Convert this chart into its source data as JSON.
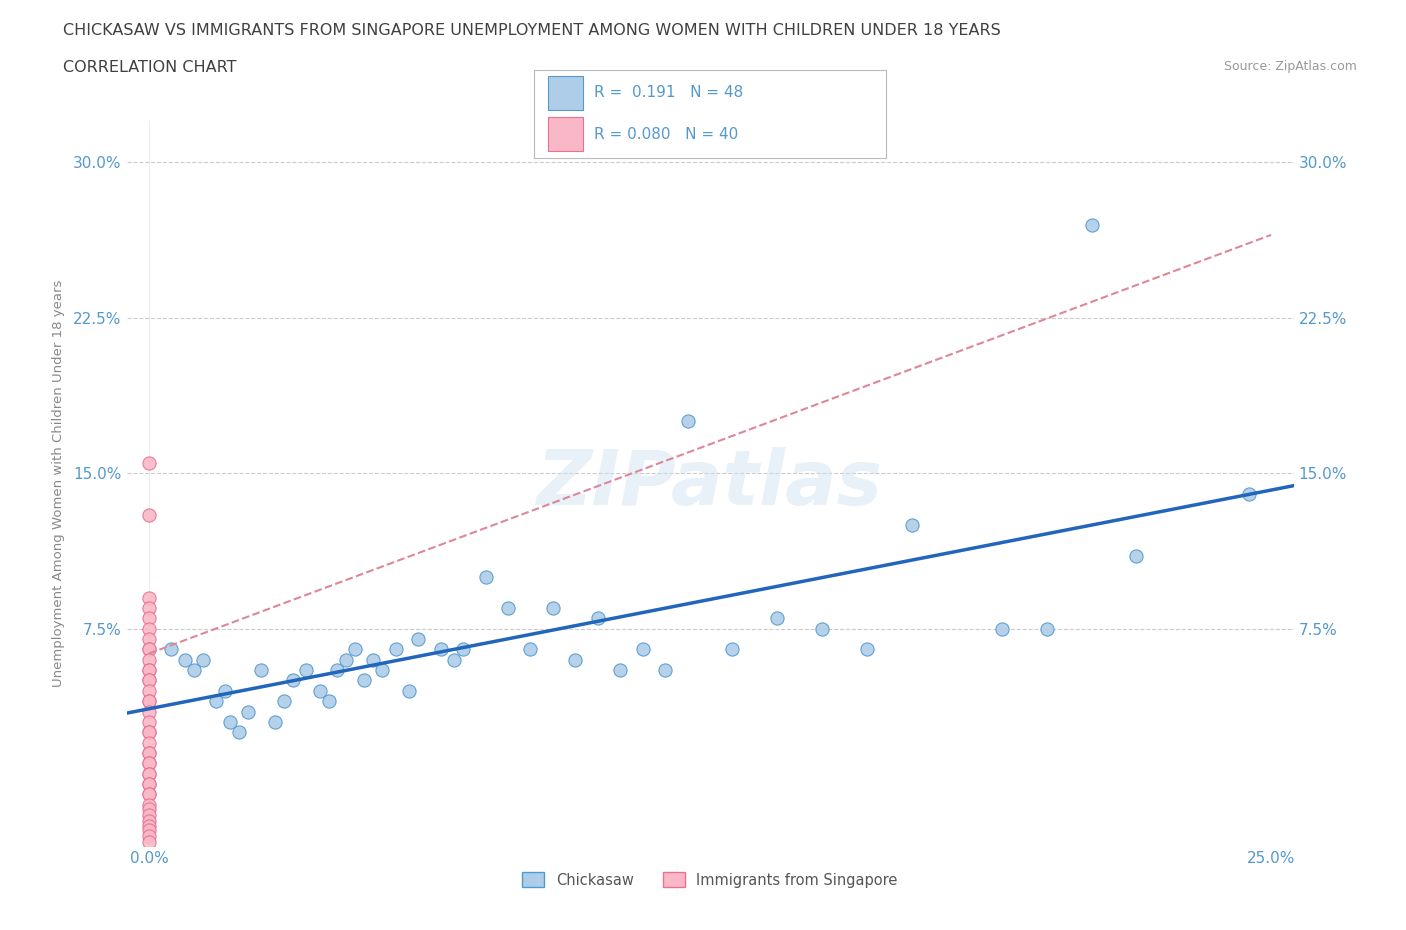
{
  "title_line1": "CHICKASAW VS IMMIGRANTS FROM SINGAPORE UNEMPLOYMENT AMONG WOMEN WITH CHILDREN UNDER 18 YEARS",
  "title_line2": "CORRELATION CHART",
  "source_text": "Source: ZipAtlas.com",
  "ylabel": "Unemployment Among Women with Children Under 18 years",
  "watermark": "ZIPatlas",
  "xlim": [
    -0.005,
    0.255
  ],
  "ylim": [
    -0.03,
    0.32
  ],
  "ytick_values": [
    0.075,
    0.15,
    0.225,
    0.3
  ],
  "ytick_labels": [
    "7.5%",
    "15.0%",
    "22.5%",
    "30.0%"
  ],
  "xtick_values": [
    0.0,
    0.25
  ],
  "xtick_labels": [
    "0.0%",
    "25.0%"
  ],
  "legend_label1": "Chickasaw",
  "legend_label2": "Immigrants from Singapore",
  "R1": 0.191,
  "N1": 48,
  "R2": 0.08,
  "N2": 40,
  "color_blue": "#aecde8",
  "color_pink": "#f9b8c8",
  "edge_blue": "#5599cc",
  "edge_pink": "#e87090",
  "line_blue": "#2266bb",
  "line_pink": "#dd8899",
  "background_color": "#ffffff",
  "grid_color": "#cccccc",
  "title_color": "#404040",
  "tick_color": "#5599cc",
  "source_color": "#999999",
  "ylabel_color": "#888888",
  "chickasaw_x": [
    0.005,
    0.008,
    0.01,
    0.012,
    0.015,
    0.017,
    0.018,
    0.02,
    0.022,
    0.025,
    0.028,
    0.03,
    0.032,
    0.035,
    0.038,
    0.04,
    0.042,
    0.044,
    0.046,
    0.048,
    0.05,
    0.052,
    0.055,
    0.058,
    0.06,
    0.065,
    0.068,
    0.07,
    0.075,
    0.08,
    0.085,
    0.09,
    0.095,
    0.1,
    0.105,
    0.11,
    0.115,
    0.12,
    0.13,
    0.14,
    0.15,
    0.16,
    0.17,
    0.19,
    0.2,
    0.21,
    0.22,
    0.245
  ],
  "chickasaw_y": [
    0.065,
    0.06,
    0.055,
    0.06,
    0.04,
    0.045,
    0.03,
    0.025,
    0.035,
    0.055,
    0.03,
    0.04,
    0.05,
    0.055,
    0.045,
    0.04,
    0.055,
    0.06,
    0.065,
    0.05,
    0.06,
    0.055,
    0.065,
    0.045,
    0.07,
    0.065,
    0.06,
    0.065,
    0.1,
    0.085,
    0.065,
    0.085,
    0.06,
    0.08,
    0.055,
    0.065,
    0.055,
    0.175,
    0.065,
    0.08,
    0.075,
    0.065,
    0.125,
    0.075,
    0.075,
    0.27,
    0.11,
    0.14
  ],
  "singapore_x": [
    0.0,
    0.0,
    0.0,
    0.0,
    0.0,
    0.0,
    0.0,
    0.0,
    0.0,
    0.0,
    0.0,
    0.0,
    0.0,
    0.0,
    0.0,
    0.0,
    0.0,
    0.0,
    0.0,
    0.0,
    0.0,
    0.0,
    0.0,
    0.0,
    0.0,
    0.0,
    0.0,
    0.0,
    0.0,
    0.0,
    0.0,
    0.0,
    0.0,
    0.0,
    0.0,
    0.0,
    0.0,
    0.0,
    0.0,
    0.0
  ],
  "singapore_y": [
    0.155,
    0.13,
    0.09,
    0.085,
    0.08,
    0.075,
    0.07,
    0.065,
    0.065,
    0.06,
    0.055,
    0.055,
    0.05,
    0.05,
    0.045,
    0.04,
    0.04,
    0.035,
    0.03,
    0.025,
    0.025,
    0.02,
    0.015,
    0.015,
    0.01,
    0.01,
    0.005,
    0.005,
    0.0,
    0.0,
    -0.005,
    -0.005,
    -0.01,
    -0.012,
    -0.015,
    -0.018,
    -0.02,
    -0.022,
    -0.025,
    -0.028
  ],
  "pink_line_x0": 0.0,
  "pink_line_y0": 0.063,
  "pink_line_x1": 0.25,
  "pink_line_y1": 0.265
}
